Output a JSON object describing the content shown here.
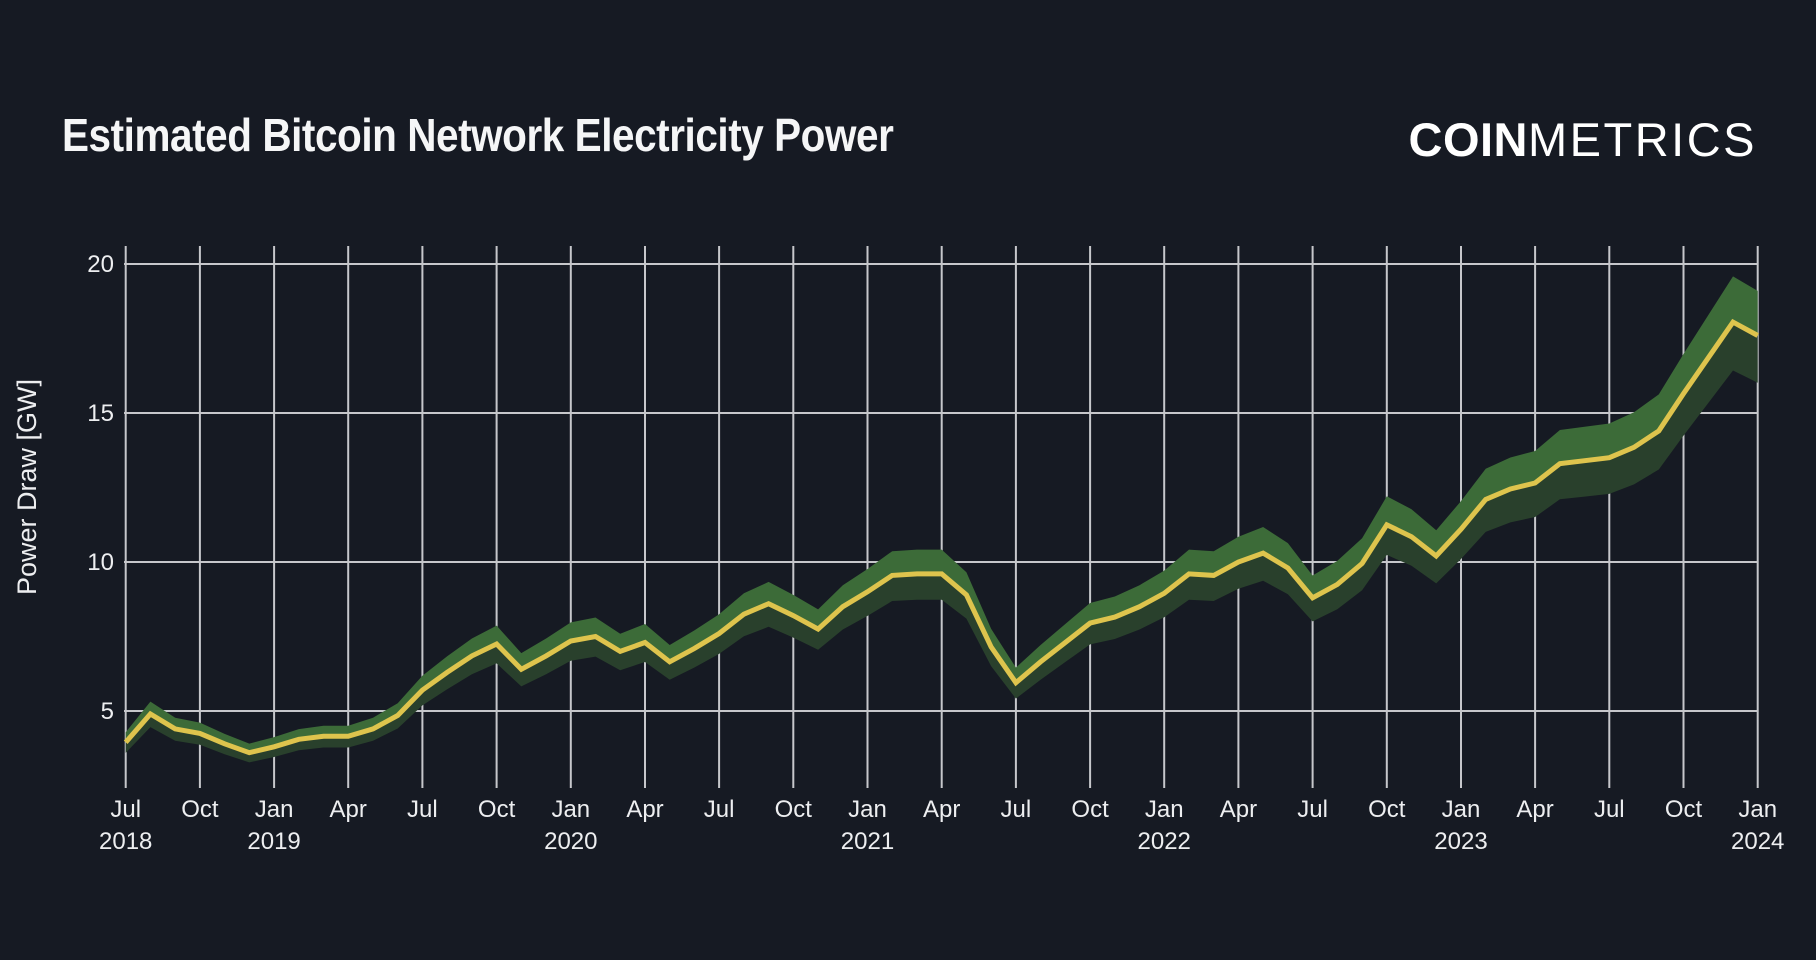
{
  "title": "Estimated Bitcoin Network Electricity Power",
  "logo": {
    "bold": "COIN",
    "light": "METRICS"
  },
  "colors": {
    "background": "#161A23",
    "title_text": "#F5F6F7",
    "logo_text": "#FFFFFF",
    "tick_text": "#EDEEF0",
    "grid": "#D5D6DA",
    "line": "#DEC44D",
    "band_upper": "#3C6B38",
    "band_lower": "#29402C"
  },
  "chart_data": {
    "type": "line",
    "title": "Estimated Bitcoin Network Electricity Power",
    "xlabel": "",
    "ylabel": "Power Draw [GW]",
    "grid": true,
    "legend": "none",
    "y_ticks": [
      5,
      10,
      15,
      20
    ],
    "ylim": [
      2.4,
      21.6
    ],
    "x": [
      "2018-07",
      "2018-08",
      "2018-09",
      "2018-10",
      "2018-11",
      "2018-12",
      "2019-01",
      "2019-02",
      "2019-03",
      "2019-04",
      "2019-05",
      "2019-06",
      "2019-07",
      "2019-08",
      "2019-09",
      "2019-10",
      "2019-11",
      "2019-12",
      "2020-01",
      "2020-02",
      "2020-03",
      "2020-04",
      "2020-05",
      "2020-06",
      "2020-07",
      "2020-08",
      "2020-09",
      "2020-10",
      "2020-11",
      "2020-12",
      "2021-01",
      "2021-02",
      "2021-03",
      "2021-04",
      "2021-05",
      "2021-06",
      "2021-07",
      "2021-08",
      "2021-09",
      "2021-10",
      "2021-11",
      "2021-12",
      "2022-01",
      "2022-02",
      "2022-03",
      "2022-04",
      "2022-05",
      "2022-06",
      "2022-07",
      "2022-08",
      "2022-09",
      "2022-10",
      "2022-11",
      "2022-12",
      "2023-01",
      "2023-02",
      "2023-03",
      "2023-04",
      "2023-05",
      "2023-06",
      "2023-07",
      "2023-08",
      "2023-09",
      "2023-10",
      "2023-11",
      "2023-12",
      "2024-01"
    ],
    "series": [
      {
        "name": "Estimated Power Draw (GW)",
        "values": [
          3.95,
          4.9,
          4.4,
          4.25,
          3.9,
          3.6,
          3.8,
          4.05,
          4.15,
          4.15,
          4.4,
          4.85,
          5.7,
          6.3,
          6.85,
          7.25,
          6.4,
          6.85,
          7.35,
          7.5,
          7.0,
          7.3,
          6.65,
          7.1,
          7.6,
          8.25,
          8.6,
          8.2,
          7.75,
          8.5,
          9.0,
          9.55,
          9.6,
          9.6,
          8.9,
          7.15,
          5.95,
          6.65,
          7.3,
          7.95,
          8.15,
          8.5,
          8.95,
          9.6,
          9.55,
          10.0,
          10.3,
          9.8,
          8.8,
          9.25,
          9.95,
          11.25,
          10.85,
          10.2,
          11.1,
          12.1,
          12.45,
          12.65,
          13.3,
          13.4,
          13.5,
          13.85,
          14.4,
          15.65,
          16.85,
          18.05,
          17.6
        ]
      }
    ],
    "band": {
      "description": "confidence interval shading around the line; lighter green above line, darker green below",
      "upper_ratio": 1.085,
      "lower_ratio": 0.91
    },
    "x_ticks": [
      {
        "m": 0,
        "label": "Jul",
        "year": "2018"
      },
      {
        "m": 3,
        "label": "Oct"
      },
      {
        "m": 6,
        "label": "Jan",
        "year": "2019"
      },
      {
        "m": 9,
        "label": "Apr"
      },
      {
        "m": 12,
        "label": "Jul"
      },
      {
        "m": 15,
        "label": "Oct"
      },
      {
        "m": 18,
        "label": "Jan",
        "year": "2020"
      },
      {
        "m": 21,
        "label": "Apr"
      },
      {
        "m": 24,
        "label": "Jul"
      },
      {
        "m": 27,
        "label": "Oct"
      },
      {
        "m": 30,
        "label": "Jan",
        "year": "2021"
      },
      {
        "m": 33,
        "label": "Apr"
      },
      {
        "m": 36,
        "label": "Jul"
      },
      {
        "m": 39,
        "label": "Oct"
      },
      {
        "m": 42,
        "label": "Jan",
        "year": "2022"
      },
      {
        "m": 45,
        "label": "Apr"
      },
      {
        "m": 48,
        "label": "Jul"
      },
      {
        "m": 51,
        "label": "Oct"
      },
      {
        "m": 54,
        "label": "Jan",
        "year": "2023"
      },
      {
        "m": 57,
        "label": "Apr"
      },
      {
        "m": 60,
        "label": "Jul"
      },
      {
        "m": 63,
        "label": "Oct"
      },
      {
        "m": 66,
        "label": "Jan",
        "year": "2024"
      }
    ]
  }
}
